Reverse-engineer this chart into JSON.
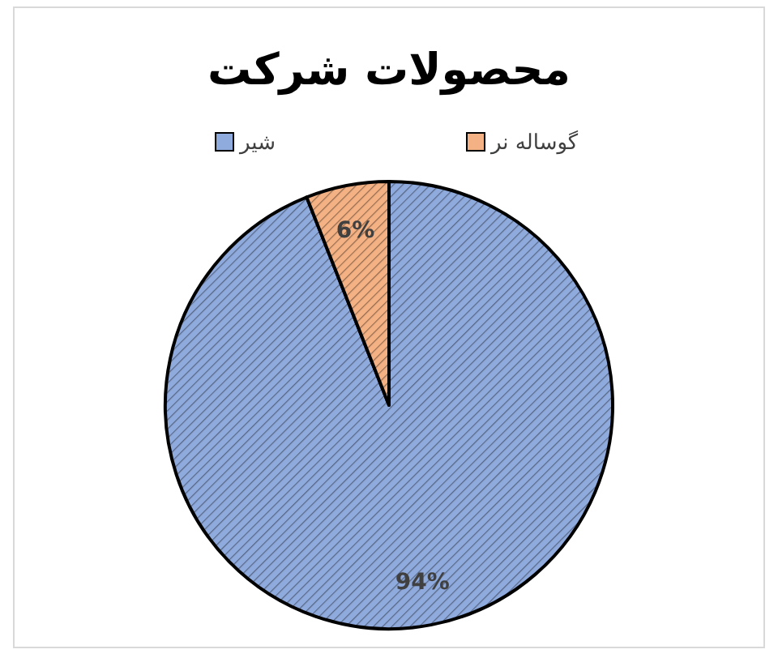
{
  "chart_data": {
    "type": "pie",
    "title": "محصولات شرکت",
    "categories": [
      "شیر",
      "گوساله نر"
    ],
    "values": [
      94,
      6
    ],
    "colors": [
      "#8faadc",
      "#f4b183"
    ],
    "data_labels": true,
    "value_labels": [
      "94%",
      "6%"
    ],
    "legend": "top"
  }
}
